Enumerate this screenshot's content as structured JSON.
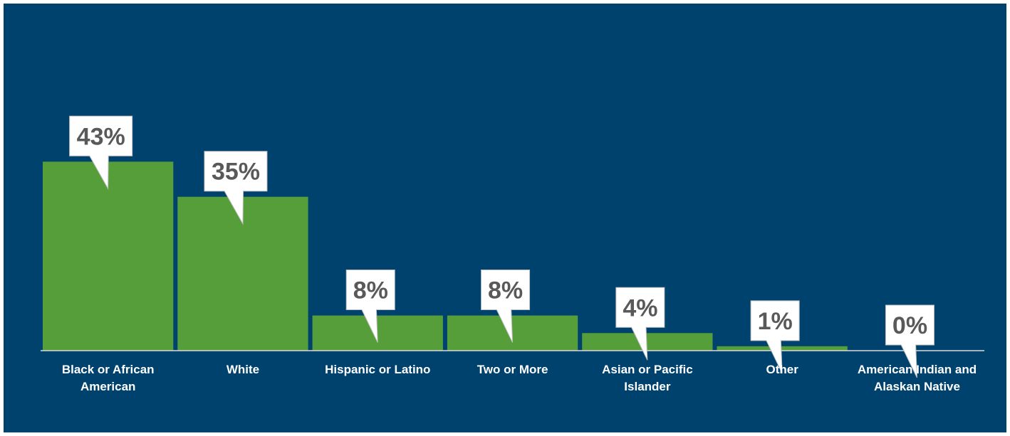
{
  "chart_data": {
    "type": "bar",
    "title": "",
    "xlabel": "",
    "ylabel": "",
    "categories": [
      "Black or African American",
      "White",
      "Hispanic or Latino",
      "Two or More",
      "Asian or Pacific Islander",
      "Other",
      "American Indian and Alaskan Native"
    ],
    "values": [
      43,
      35,
      8,
      8,
      4,
      1,
      0
    ],
    "value_labels": [
      "43%",
      "35%",
      "8%",
      "8%",
      "4%",
      "1%",
      "0%"
    ],
    "value_suffix": "%",
    "ylim": [
      0,
      50
    ],
    "grid": false,
    "legend": "none",
    "colors": {
      "background": "#00426E",
      "bar": "#559E3A",
      "callout_fill": "#FFFFFF",
      "callout_text": "#595959",
      "category_text": "#FFFFFF",
      "axis_line": "#D9D9D9"
    }
  }
}
